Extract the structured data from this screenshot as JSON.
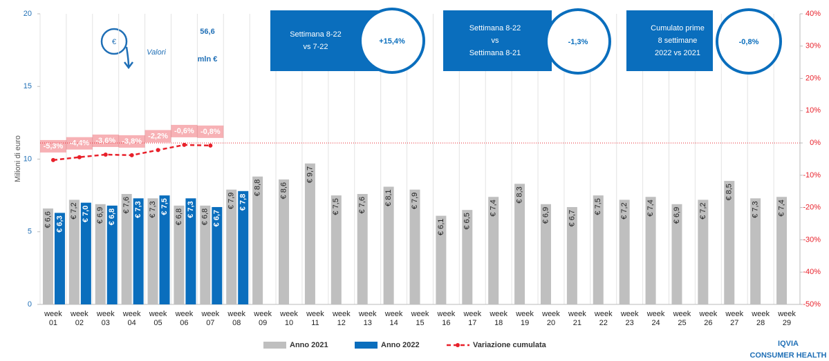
{
  "chart_data": {
    "type": "bar",
    "y_label": "Milioni di euro",
    "categories": [
      "week 01",
      "week 02",
      "week 03",
      "week 04",
      "week 05",
      "week 06",
      "week 07",
      "week 08",
      "week 09",
      "week 10",
      "week 11",
      "week 12",
      "week 13",
      "week 14",
      "week 15",
      "week 16",
      "week 17",
      "week 18",
      "week 19",
      "week 20",
      "week 21",
      "week 22",
      "week 23",
      "week 24",
      "week 25",
      "week 26",
      "week 27",
      "week 28",
      "week 29"
    ],
    "series": [
      {
        "name": "Anno 2021",
        "type": "bar",
        "color": "#bfbfbf",
        "values": [
          6.6,
          7.2,
          6.9,
          7.6,
          7.3,
          6.8,
          6.8,
          7.9,
          8.8,
          8.6,
          9.7,
          7.5,
          7.6,
          8.1,
          7.9,
          6.1,
          6.5,
          7.4,
          8.3,
          6.9,
          6.7,
          7.5,
          7.2,
          7.4,
          6.9,
          7.2,
          8.5,
          7.3,
          7.4
        ],
        "value_labels": [
          "€ 6,6",
          "€ 7,2",
          "€ 6,9",
          "€ 7,6",
          "€ 7,3",
          "€ 6,8",
          "€ 6,8",
          "€ 7,9",
          "€ 8,8",
          "€ 8,6",
          "€ 9,7",
          "€ 7,5",
          "€ 7,6",
          "€ 8,1",
          "€ 7,9",
          "€ 6,1",
          "€ 6,5",
          "€ 7,4",
          "€ 8,3",
          "€ 6,9",
          "€ 6,7",
          "€ 7,5",
          "€ 7,2",
          "€ 7,4",
          "€ 6,9",
          "€ 7,2",
          "€ 8,5",
          "€ 7,3",
          "€ 7,4"
        ]
      },
      {
        "name": "Anno 2022",
        "type": "bar",
        "color": "#0a6ebd",
        "values": [
          6.3,
          7.0,
          6.8,
          7.3,
          7.5,
          7.3,
          6.7,
          7.8,
          null,
          null,
          null,
          null,
          null,
          null,
          null,
          null,
          null,
          null,
          null,
          null,
          null,
          null,
          null,
          null,
          null,
          null,
          null,
          null,
          null
        ],
        "value_labels": [
          "€ 6,3",
          "€ 7,0",
          "€ 6,8",
          "€ 7,3",
          "€ 7,5",
          "€ 7,3",
          "€ 6,7",
          "€ 7,8",
          null,
          null,
          null,
          null,
          null,
          null,
          null,
          null,
          null,
          null,
          null,
          null,
          null,
          null,
          null,
          null,
          null,
          null,
          null,
          null,
          null
        ]
      },
      {
        "name": "Variazione cumulata",
        "type": "line",
        "axis": "y2",
        "color": "#e8202a",
        "values": [
          -5.3,
          -4.4,
          -3.6,
          -3.8,
          -2.2,
          -0.6,
          -0.8,
          null,
          null,
          null,
          null,
          null,
          null,
          null,
          null,
          null,
          null,
          null,
          null,
          null,
          null,
          null,
          null,
          null,
          null,
          null,
          null,
          null,
          null
        ],
        "value_labels": [
          "-5,3%",
          "-4,4%",
          "-3,6%",
          "-3,8%",
          "-2,2%",
          "-0,6%",
          "-0,8%",
          null,
          null,
          null,
          null,
          null,
          null,
          null,
          null,
          null,
          null,
          null,
          null,
          null,
          null,
          null,
          null,
          null,
          null,
          null,
          null,
          null,
          null
        ]
      }
    ],
    "ylim": [
      0,
      20
    ],
    "yticks": [
      0,
      5,
      10,
      15,
      20
    ],
    "y2lim": [
      -50,
      40
    ],
    "y2ticks": [
      {
        "value": -50,
        "label": "-50%"
      },
      {
        "value": -40,
        "label": "-40%"
      },
      {
        "value": -30,
        "label": "-30%"
      },
      {
        "value": -20,
        "label": "-20%"
      },
      {
        "value": -10,
        "label": "-10%"
      },
      {
        "value": 0,
        "label": "0%"
      },
      {
        "value": 10,
        "label": "10%"
      },
      {
        "value": 20,
        "label": "20%"
      },
      {
        "value": 30,
        "label": "30%"
      },
      {
        "value": 40,
        "label": "40%"
      }
    ],
    "legend": "bottom"
  },
  "header": {
    "value": "56,6",
    "unit": "mln €",
    "caption": "Valori"
  },
  "panels": [
    {
      "lines": [
        "Settimana 8-22",
        "vs 7-22"
      ],
      "value": "+15,4%"
    },
    {
      "lines": [
        "Settimana 8-22",
        "vs",
        "Settimana 8-21"
      ],
      "value": "-1,3%"
    },
    {
      "lines": [
        "Cumulato prime",
        "8 settimane",
        "2022 vs 2021"
      ],
      "value": "-0,8%"
    }
  ],
  "logo": {
    "name": "IQVIA",
    "subtitle": "CONSUMER HEALTH"
  }
}
